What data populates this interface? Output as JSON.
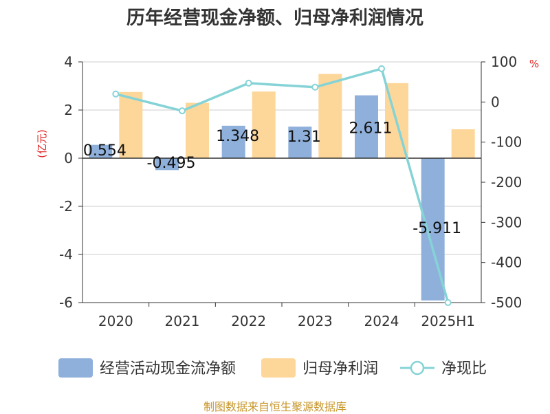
{
  "title": "历年经营现金净额、归母净利润情况",
  "footer": "制图数据来自恒生聚源数据库",
  "colors": {
    "ocf": "#8fb0db",
    "np": "#fdd79a",
    "ratio": "#85d3d6",
    "unit_red": "#e02020"
  },
  "chart_data": {
    "type": "bar",
    "categories": [
      "2020",
      "2021",
      "2022",
      "2023",
      "2024",
      "2025H1"
    ],
    "y_left": {
      "unit": "(亿元)",
      "ticks": [
        4,
        2,
        0,
        -2,
        -4,
        -6
      ],
      "ylim": [
        -6,
        4
      ]
    },
    "y_right": {
      "unit": "%",
      "ticks": [
        100,
        0,
        -100,
        -200,
        -300,
        -400,
        -500
      ],
      "ylim": [
        -500,
        100
      ]
    },
    "grid": true,
    "legend_position": "bottom",
    "series": [
      {
        "name": "经营活动现金流净额",
        "type": "bar",
        "axis": "left",
        "values": [
          0.554,
          -0.495,
          1.348,
          1.31,
          2.611,
          -5.911
        ],
        "labels": [
          "0.554",
          "-0.495",
          "1.348",
          "1.31",
          "2.611",
          "-5.911"
        ]
      },
      {
        "name": "归母净利润",
        "type": "bar",
        "axis": "left",
        "values": [
          2.75,
          2.3,
          2.77,
          3.5,
          3.12,
          1.2
        ]
      },
      {
        "name": "净现比",
        "type": "line",
        "axis": "right",
        "values": [
          20,
          -22,
          47,
          37,
          83,
          -500
        ]
      }
    ]
  }
}
